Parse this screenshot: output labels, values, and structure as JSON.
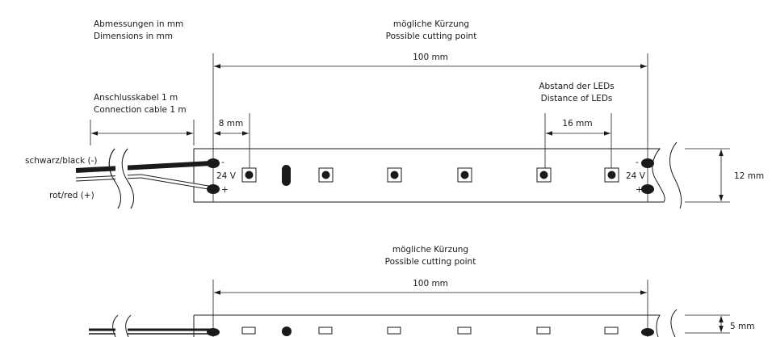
{
  "labels": {
    "dimensions_de": "Abmessungen in mm",
    "dimensions_en": "Dimensions in mm",
    "cut_de": "mögliche Kürzung",
    "cut_en": "Possible cutting point",
    "cut_length": "100 mm",
    "cable_de": "Anschlusskabel 1 m",
    "cable_en": "Connection cable 1 m",
    "first_led_offset": "8 mm",
    "led_distance_de": "Abstand der LEDs",
    "led_distance_en": "Distance of LEDs",
    "led_pitch": "16 mm",
    "wire_black": "schwarz/black (-)",
    "wire_red": "rot/red (+)",
    "voltage": "24 V",
    "minus": "-",
    "plus": "+",
    "strip_width": "12 mm",
    "cut_de_2": "mögliche Kürzung",
    "cut_en_2": "Possible cutting point",
    "cut_length_2": "100 mm",
    "strip_height": "5 mm"
  },
  "colors": {
    "line": "#1a1a1a",
    "background": "#ffffff"
  }
}
